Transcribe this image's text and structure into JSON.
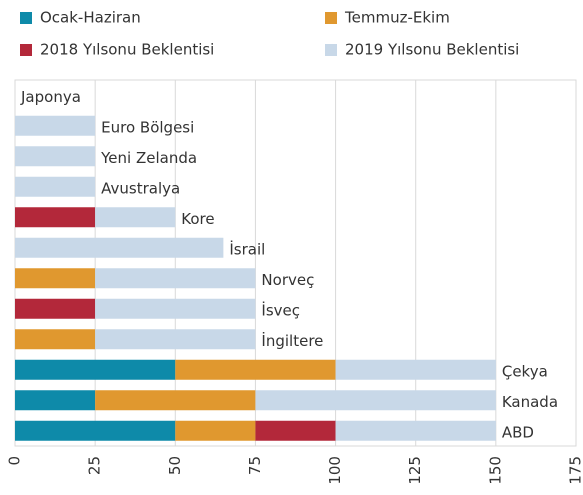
{
  "chart_data": {
    "type": "stacked-barh",
    "categories": [
      "Japonya",
      "Euro Bölgesi",
      "Yeni Zelanda",
      "Avustralya",
      "Kore",
      "İsrail",
      "Norveç",
      "İsveç",
      "İngiltere",
      "Çekya",
      "Kanada",
      "ABD"
    ],
    "series": [
      {
        "name": "Ocak-Haziran",
        "color": "#0e8aa9",
        "values": [
          0,
          0,
          0,
          0,
          0,
          0,
          0,
          0,
          0,
          50,
          25,
          50
        ]
      },
      {
        "name": "Temmuz-Ekim",
        "color": "#e0982f",
        "values": [
          0,
          0,
          0,
          0,
          0,
          0,
          25,
          0,
          25,
          50,
          50,
          25
        ]
      },
      {
        "name": "2018 Yılsonu Beklentisi",
        "color": "#b3283a",
        "values": [
          0,
          0,
          0,
          0,
          25,
          0,
          0,
          25,
          0,
          0,
          0,
          25
        ]
      },
      {
        "name": "2019 Yılsonu Beklentisi",
        "color": "#c8d8e8",
        "values": [
          0,
          25,
          25,
          25,
          25,
          65,
          50,
          50,
          50,
          50,
          75,
          50
        ]
      }
    ],
    "xlim": [
      0,
      175
    ],
    "xticks": [
      0,
      25,
      50,
      75,
      100,
      125,
      150,
      175
    ],
    "grid": true
  }
}
